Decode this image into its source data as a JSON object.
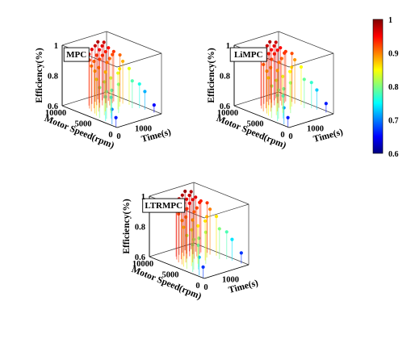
{
  "chart_data": [
    {
      "type": "scatter3d",
      "title": "MPC",
      "xlabel": "Time(s)",
      "ylabel": "Motor Speed(rpm)",
      "zlabel": "Efficiency(%)",
      "xlim": [
        0,
        1800
      ],
      "ylim": [
        0,
        10000
      ],
      "zlim": [
        0.6,
        1
      ],
      "x_ticks": [
        "0",
        "1000"
      ],
      "y_ticks": [
        "0",
        "5000",
        "10000"
      ],
      "z_ticks": [
        "0.6",
        "0.8",
        "1"
      ],
      "series": [
        {
          "x": [
            20,
            60,
            110,
            160,
            210,
            260,
            300,
            340,
            380,
            420,
            460,
            500,
            540,
            580,
            620,
            660,
            700,
            740,
            780,
            820,
            860,
            900,
            940,
            980,
            1020,
            1060,
            1100,
            1140,
            1180,
            1220,
            1260,
            1300,
            1340,
            1380,
            1420,
            1460,
            1500,
            1540,
            1580,
            1620,
            1660,
            1700
          ],
          "y": [
            300,
            1200,
            2600,
            3900,
            4700,
            3100,
            5400,
            6200,
            2800,
            4200,
            7100,
            5600,
            3400,
            6800,
            7900,
            5100,
            4300,
            6500,
            8100,
            7400,
            3600,
            5900,
            6900,
            8400,
            7800,
            4600,
            6300,
            7200,
            8800,
            8200,
            5200,
            6700,
            7600,
            8600,
            7000,
            3800,
            5700,
            6400,
            4900,
            3200,
            2400,
            900
          ],
          "z": [
            0.66,
            0.7,
            0.76,
            0.8,
            0.84,
            0.78,
            0.88,
            0.9,
            0.74,
            0.82,
            0.92,
            0.89,
            0.77,
            0.91,
            0.94,
            0.86,
            0.83,
            0.92,
            0.96,
            0.93,
            0.79,
            0.9,
            0.93,
            0.97,
            0.95,
            0.84,
            0.91,
            0.94,
            0.98,
            0.96,
            0.85,
            0.92,
            0.95,
            0.97,
            0.93,
            0.78,
            0.88,
            0.91,
            0.84,
            0.76,
            0.72,
            0.65
          ]
        }
      ]
    },
    {
      "type": "scatter3d",
      "title": "LiMPC",
      "xlabel": "Time(s)",
      "ylabel": "Motor Speed(rpm)",
      "zlabel": "Efficiency(%)",
      "xlim": [
        0,
        1800
      ],
      "ylim": [
        0,
        10000
      ],
      "zlim": [
        0.6,
        1
      ],
      "x_ticks": [
        "0",
        "1000"
      ],
      "y_ticks": [
        "0",
        "5000",
        "10000"
      ],
      "z_ticks": [
        "0.6",
        "0.8",
        "1"
      ],
      "series": [
        {
          "x": [
            20,
            60,
            110,
            160,
            210,
            260,
            300,
            340,
            380,
            420,
            460,
            500,
            540,
            580,
            620,
            660,
            700,
            740,
            780,
            820,
            860,
            900,
            940,
            980,
            1020,
            1060,
            1100,
            1140,
            1180,
            1220,
            1260,
            1300,
            1340,
            1380,
            1420,
            1460,
            1500,
            1540,
            1580,
            1620,
            1660,
            1700
          ],
          "y": [
            300,
            1200,
            2600,
            3900,
            4700,
            3100,
            5400,
            6200,
            2800,
            4200,
            7100,
            5600,
            3400,
            6800,
            7900,
            5100,
            4300,
            6500,
            8100,
            7400,
            3600,
            5900,
            6900,
            8400,
            7800,
            4600,
            6300,
            7200,
            8800,
            8200,
            5200,
            6700,
            7600,
            8600,
            7000,
            3800,
            5700,
            6400,
            4900,
            3200,
            2400,
            900
          ],
          "z": [
            0.66,
            0.71,
            0.77,
            0.81,
            0.85,
            0.79,
            0.88,
            0.91,
            0.75,
            0.83,
            0.93,
            0.89,
            0.78,
            0.92,
            0.95,
            0.87,
            0.84,
            0.92,
            0.96,
            0.94,
            0.8,
            0.9,
            0.94,
            0.97,
            0.95,
            0.85,
            0.91,
            0.95,
            0.98,
            0.96,
            0.86,
            0.93,
            0.95,
            0.97,
            0.93,
            0.79,
            0.89,
            0.92,
            0.85,
            0.77,
            0.73,
            0.66
          ]
        }
      ]
    },
    {
      "type": "scatter3d",
      "title": "LTRMPC",
      "xlabel": "Time(s)",
      "ylabel": "Motor Speed(rpm)",
      "zlabel": "Efficiency(%)",
      "xlim": [
        0,
        1800
      ],
      "ylim": [
        0,
        10000
      ],
      "zlim": [
        0.6,
        1
      ],
      "x_ticks": [
        "0",
        "1000"
      ],
      "y_ticks": [
        "0",
        "5000",
        "10000"
      ],
      "z_ticks": [
        "0.6",
        "0.8",
        "1"
      ],
      "series": [
        {
          "x": [
            20,
            60,
            110,
            160,
            210,
            260,
            300,
            340,
            380,
            420,
            460,
            500,
            540,
            580,
            620,
            660,
            700,
            740,
            780,
            820,
            860,
            900,
            940,
            980,
            1020,
            1060,
            1100,
            1140,
            1180,
            1220,
            1260,
            1300,
            1340,
            1380,
            1420,
            1460,
            1500,
            1540,
            1580,
            1620,
            1660,
            1700
          ],
          "y": [
            300,
            1200,
            2600,
            3900,
            4700,
            3100,
            5400,
            6200,
            2800,
            4200,
            7100,
            5600,
            3400,
            6800,
            7900,
            5100,
            4300,
            6500,
            8100,
            7400,
            3600,
            5900,
            6900,
            8400,
            7800,
            4600,
            6300,
            7200,
            8800,
            8200,
            5200,
            6700,
            7600,
            8600,
            7000,
            3800,
            5700,
            6400,
            4900,
            3200,
            2400,
            900
          ],
          "z": [
            0.67,
            0.72,
            0.78,
            0.82,
            0.86,
            0.8,
            0.89,
            0.92,
            0.76,
            0.84,
            0.94,
            0.9,
            0.79,
            0.93,
            0.96,
            0.88,
            0.85,
            0.93,
            0.97,
            0.95,
            0.81,
            0.91,
            0.95,
            0.98,
            0.96,
            0.86,
            0.92,
            0.96,
            0.99,
            0.97,
            0.87,
            0.94,
            0.96,
            0.98,
            0.94,
            0.8,
            0.9,
            0.93,
            0.86,
            0.78,
            0.74,
            0.67
          ]
        }
      ]
    }
  ],
  "colorbar": {
    "range": [
      0.6,
      1
    ],
    "ticks": [
      "1",
      "0.9",
      "0.8",
      "0.7",
      "0.6"
    ],
    "colormap": "jet",
    "colors": [
      "#00007f",
      "#0000ff",
      "#007fff",
      "#00ffff",
      "#7fff7f",
      "#ffff00",
      "#ff7f00",
      "#ff0000",
      "#7f0000"
    ]
  }
}
